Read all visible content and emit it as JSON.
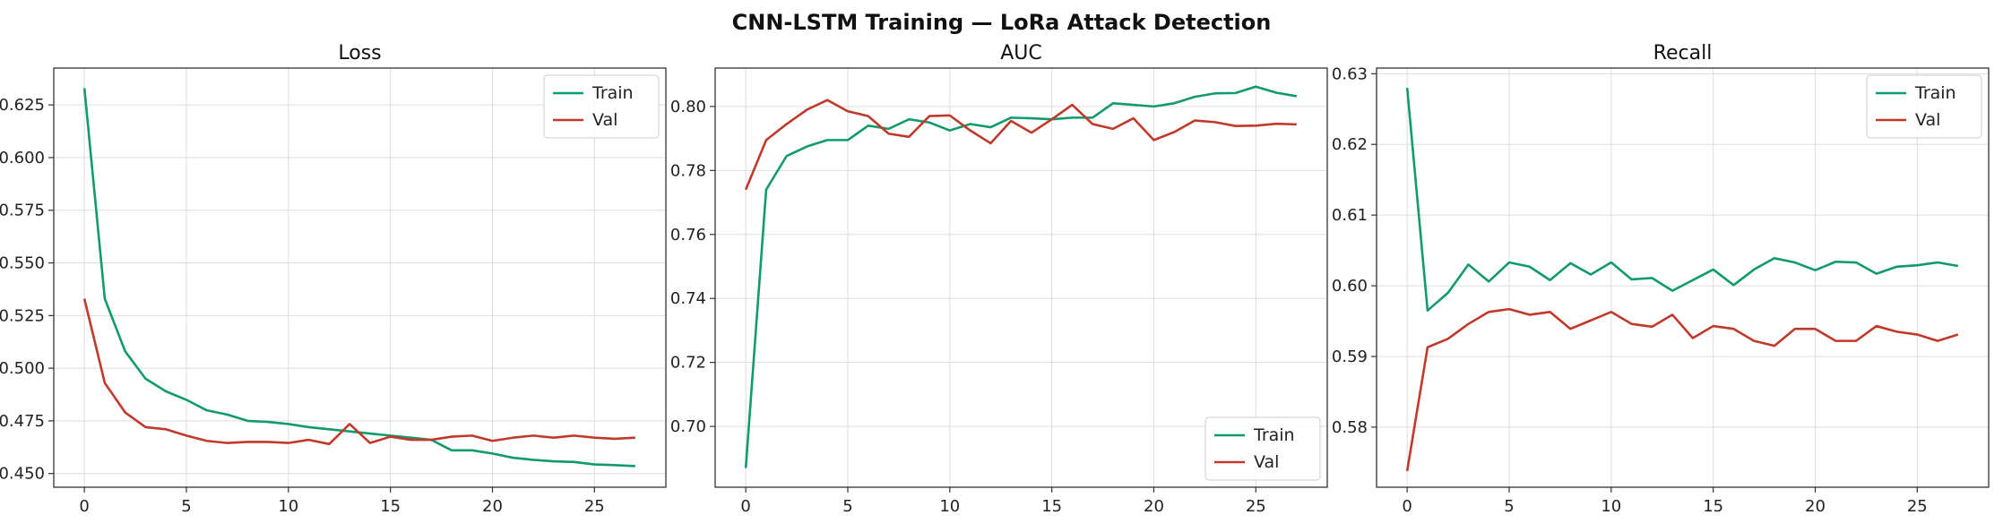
{
  "figure": {
    "title": "CNN-LSTM Training — LoRa Attack Detection"
  },
  "colors": {
    "train": "#119a6a",
    "val": "#c0392b",
    "grid": "#dddddd",
    "axis": "#333333"
  },
  "chart_data": [
    {
      "type": "line",
      "title": "Loss",
      "xlim": [
        -1.5,
        28.5
      ],
      "ylim": [
        0.4435,
        0.6425
      ],
      "xticks": [
        0,
        5,
        10,
        15,
        20,
        25
      ],
      "yticks": [
        0.45,
        0.475,
        0.5,
        0.525,
        0.55,
        0.575,
        0.6,
        0.625
      ],
      "ytick_labels": [
        "0.450",
        "0.475",
        "0.500",
        "0.525",
        "0.550",
        "0.575",
        "0.600",
        "0.625"
      ],
      "grid": true,
      "legend": "upper right",
      "x": [
        0,
        1,
        2,
        3,
        4,
        5,
        6,
        7,
        8,
        9,
        10,
        11,
        12,
        13,
        14,
        15,
        16,
        17,
        18,
        19,
        20,
        21,
        22,
        23,
        24,
        25,
        26,
        27
      ],
      "series": [
        {
          "name": "Train",
          "values": [
            0.633,
            0.533,
            0.508,
            0.495,
            0.489,
            0.485,
            0.48,
            0.478,
            0.475,
            0.4745,
            0.4735,
            0.472,
            0.471,
            0.47,
            0.469,
            0.468,
            0.467,
            0.466,
            0.461,
            0.461,
            0.4595,
            0.4575,
            0.4565,
            0.4558,
            0.4555,
            0.4543,
            0.454,
            0.4535
          ]
        },
        {
          "name": "Val",
          "values": [
            0.533,
            0.493,
            0.479,
            0.472,
            0.471,
            0.468,
            0.4655,
            0.4645,
            0.465,
            0.465,
            0.4645,
            0.466,
            0.464,
            0.4735,
            0.4645,
            0.4675,
            0.466,
            0.466,
            0.4675,
            0.468,
            0.4655,
            0.467,
            0.468,
            0.467,
            0.468,
            0.467,
            0.4665,
            0.467
          ]
        }
      ]
    },
    {
      "type": "line",
      "title": "AUC",
      "xlim": [
        -1.5,
        28.5
      ],
      "ylim": [
        0.681,
        0.812
      ],
      "xticks": [
        0,
        5,
        10,
        15,
        20,
        25
      ],
      "yticks": [
        0.7,
        0.72,
        0.74,
        0.76,
        0.78,
        0.8
      ],
      "ytick_labels": [
        "0.70",
        "0.72",
        "0.74",
        "0.76",
        "0.78",
        "0.80"
      ],
      "grid": true,
      "legend": "lower right",
      "x": [
        0,
        1,
        2,
        3,
        4,
        5,
        6,
        7,
        8,
        9,
        10,
        11,
        12,
        13,
        14,
        15,
        16,
        17,
        18,
        19,
        20,
        21,
        22,
        23,
        24,
        25,
        26,
        27
      ],
      "series": [
        {
          "name": "Train",
          "values": [
            0.687,
            0.774,
            0.7845,
            0.7875,
            0.7895,
            0.7895,
            0.794,
            0.793,
            0.796,
            0.795,
            0.7925,
            0.7945,
            0.7935,
            0.7965,
            0.7963,
            0.796,
            0.7965,
            0.7965,
            0.801,
            0.8005,
            0.8,
            0.801,
            0.803,
            0.8041,
            0.8042,
            0.8062,
            0.8043,
            0.8032
          ]
        },
        {
          "name": "Val",
          "values": [
            0.774,
            0.7895,
            0.7945,
            0.799,
            0.802,
            0.7985,
            0.797,
            0.7915,
            0.7905,
            0.797,
            0.7972,
            0.7925,
            0.7885,
            0.7955,
            0.7918,
            0.796,
            0.8005,
            0.7945,
            0.793,
            0.7963,
            0.7895,
            0.792,
            0.7956,
            0.7951,
            0.7939,
            0.794,
            0.7946,
            0.7944
          ]
        }
      ]
    },
    {
      "type": "line",
      "title": "Recall",
      "xlim": [
        -1.5,
        28.5
      ],
      "ylim": [
        0.5715,
        0.6308
      ],
      "xticks": [
        0,
        5,
        10,
        15,
        20,
        25
      ],
      "yticks": [
        0.58,
        0.59,
        0.6,
        0.61,
        0.62,
        0.63
      ],
      "ytick_labels": [
        "0.58",
        "0.59",
        "0.60",
        "0.61",
        "0.62",
        "0.63"
      ],
      "grid": true,
      "legend": "upper right",
      "x": [
        0,
        1,
        2,
        3,
        4,
        5,
        6,
        7,
        8,
        9,
        10,
        11,
        12,
        13,
        14,
        15,
        16,
        17,
        18,
        19,
        20,
        21,
        22,
        23,
        24,
        25,
        26,
        27
      ],
      "series": [
        {
          "name": "Train",
          "values": [
            0.628,
            0.5965,
            0.599,
            0.603,
            0.6006,
            0.6033,
            0.6027,
            0.6008,
            0.6032,
            0.6016,
            0.6033,
            0.6009,
            0.6011,
            0.5993,
            0.6008,
            0.6023,
            0.6001,
            0.6023,
            0.6039,
            0.6033,
            0.6022,
            0.6034,
            0.6033,
            0.6017,
            0.6027,
            0.6029,
            0.6033,
            0.6028
          ]
        },
        {
          "name": "Val",
          "values": [
            0.5738,
            0.5913,
            0.5925,
            0.5946,
            0.5963,
            0.5967,
            0.5959,
            0.5963,
            0.5939,
            0.5951,
            0.5963,
            0.5946,
            0.5942,
            0.5959,
            0.5926,
            0.5943,
            0.5939,
            0.5922,
            0.5915,
            0.5939,
            0.5939,
            0.5922,
            0.5922,
            0.5943,
            0.5935,
            0.5931,
            0.5922,
            0.5931
          ]
        }
      ]
    }
  ]
}
